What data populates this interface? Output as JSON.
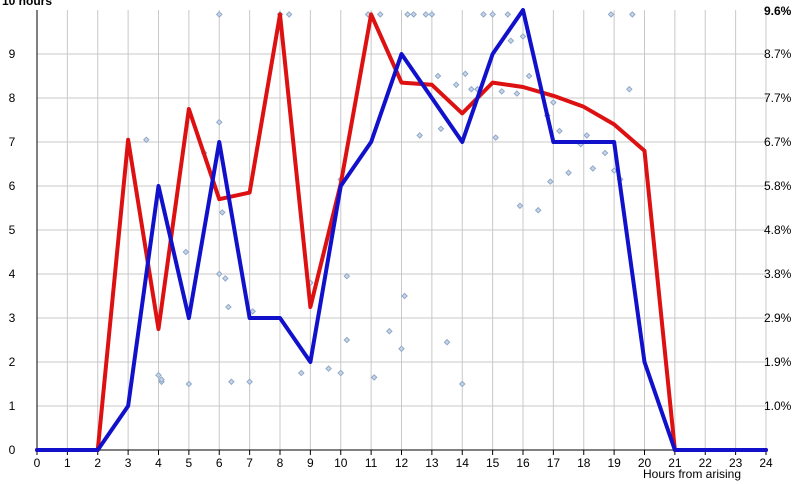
{
  "chart_data": {
    "type": "line",
    "left_axis_label": "10 hours",
    "right_axis_top_label": "9.6%",
    "xlabel": "Hours from arising",
    "x_ticks": [
      "0",
      "1",
      "2",
      "3",
      "4",
      "5",
      "6",
      "7",
      "8",
      "9",
      "10",
      "11",
      "12",
      "13",
      "14",
      "15",
      "16",
      "17",
      "18",
      "19",
      "20",
      "21",
      "22",
      "23",
      "24"
    ],
    "xlim": [
      0,
      24
    ],
    "ylim": [
      0,
      10
    ],
    "y_ticks_left": [
      "0",
      "1",
      "2",
      "3",
      "4",
      "5",
      "6",
      "7",
      "8",
      "9"
    ],
    "y_ticks_right": [
      "1.0%",
      "1.9%",
      "2.9%",
      "3.8%",
      "4.8%",
      "5.8%",
      "6.7%",
      "7.7%",
      "8.7%"
    ],
    "grid": true,
    "colors": {
      "red_series": "#dd1111",
      "blue_series": "#1111cc",
      "scatter": "#8fa8c8",
      "grid": "#c8c8c8"
    },
    "series": [
      {
        "color": "red",
        "x": [
          0,
          2,
          3,
          4,
          5,
          6,
          7,
          8,
          9,
          10,
          11,
          12,
          13,
          14,
          15,
          16,
          17,
          18,
          19,
          20,
          21,
          22,
          23,
          24
        ],
        "y": [
          0,
          0,
          7.05,
          2.75,
          7.75,
          5.7,
          5.85,
          9.9,
          3.25,
          6.05,
          9.9,
          8.35,
          8.3,
          7.65,
          8.35,
          8.25,
          8.05,
          7.8,
          7.4,
          6.8,
          0,
          0,
          0,
          0
        ]
      },
      {
        "color": "blue",
        "x": [
          0,
          2,
          3,
          4,
          5,
          6,
          7,
          8,
          9,
          10,
          11,
          12,
          13,
          14,
          15,
          16,
          17,
          18,
          19,
          20,
          21,
          22,
          23,
          24
        ],
        "y": [
          0,
          0,
          1,
          6,
          3,
          7,
          3,
          3,
          2,
          6,
          7,
          9,
          8,
          7,
          9,
          10,
          7,
          7,
          7,
          2,
          0,
          0,
          0,
          0
        ]
      }
    ],
    "scatter": {
      "x": [
        3.6,
        4.0,
        4.1,
        4.1,
        4.9,
        5.0,
        6.0,
        6.1,
        6.2,
        6.3,
        6.4,
        6.0,
        7.0,
        7.1,
        8.3,
        8.7,
        8.0,
        9.0,
        9.6,
        10.0,
        10.2,
        10.2,
        11.1,
        11.6,
        12.0,
        12.1,
        12.4,
        12.8,
        13.5,
        13.0,
        13.2,
        13.8,
        14.1,
        14.3,
        14.5,
        14.7,
        15.0,
        15.3,
        15.5,
        15.6,
        15.8,
        16.0,
        16.2,
        16.5,
        16.8,
        17.0,
        17.2,
        17.9,
        18.3,
        18.7,
        19.2,
        19.5,
        19.0,
        18.1,
        6.0,
        5.5,
        10.0,
        13.3,
        14.0,
        15.1,
        15.9,
        16.9,
        18.9,
        10.9,
        11.3,
        12.2,
        12.6,
        17.5,
        19.6
      ],
      "y": [
        7.05,
        1.7,
        1.55,
        1.6,
        4.5,
        1.5,
        7.45,
        5.4,
        3.9,
        3.25,
        1.55,
        4.0,
        1.55,
        3.15,
        9.9,
        1.75,
        9.9,
        3.8,
        1.85,
        1.75,
        2.5,
        3.95,
        1.65,
        2.7,
        2.3,
        3.5,
        9.9,
        9.9,
        2.45,
        9.9,
        8.5,
        8.3,
        8.55,
        8.2,
        8.2,
        9.9,
        9.9,
        8.15,
        9.9,
        9.3,
        8.1,
        9.4,
        8.5,
        5.45,
        7.6,
        7.9,
        7.25,
        6.95,
        6.4,
        6.75,
        6.15,
        8.2,
        6.35,
        7.15,
        9.9,
        6.75,
        6.15,
        7.3,
        1.5,
        7.1,
        5.55,
        6.1,
        9.9,
        9.9,
        9.9,
        9.9,
        7.15,
        6.3,
        9.9
      ]
    }
  }
}
